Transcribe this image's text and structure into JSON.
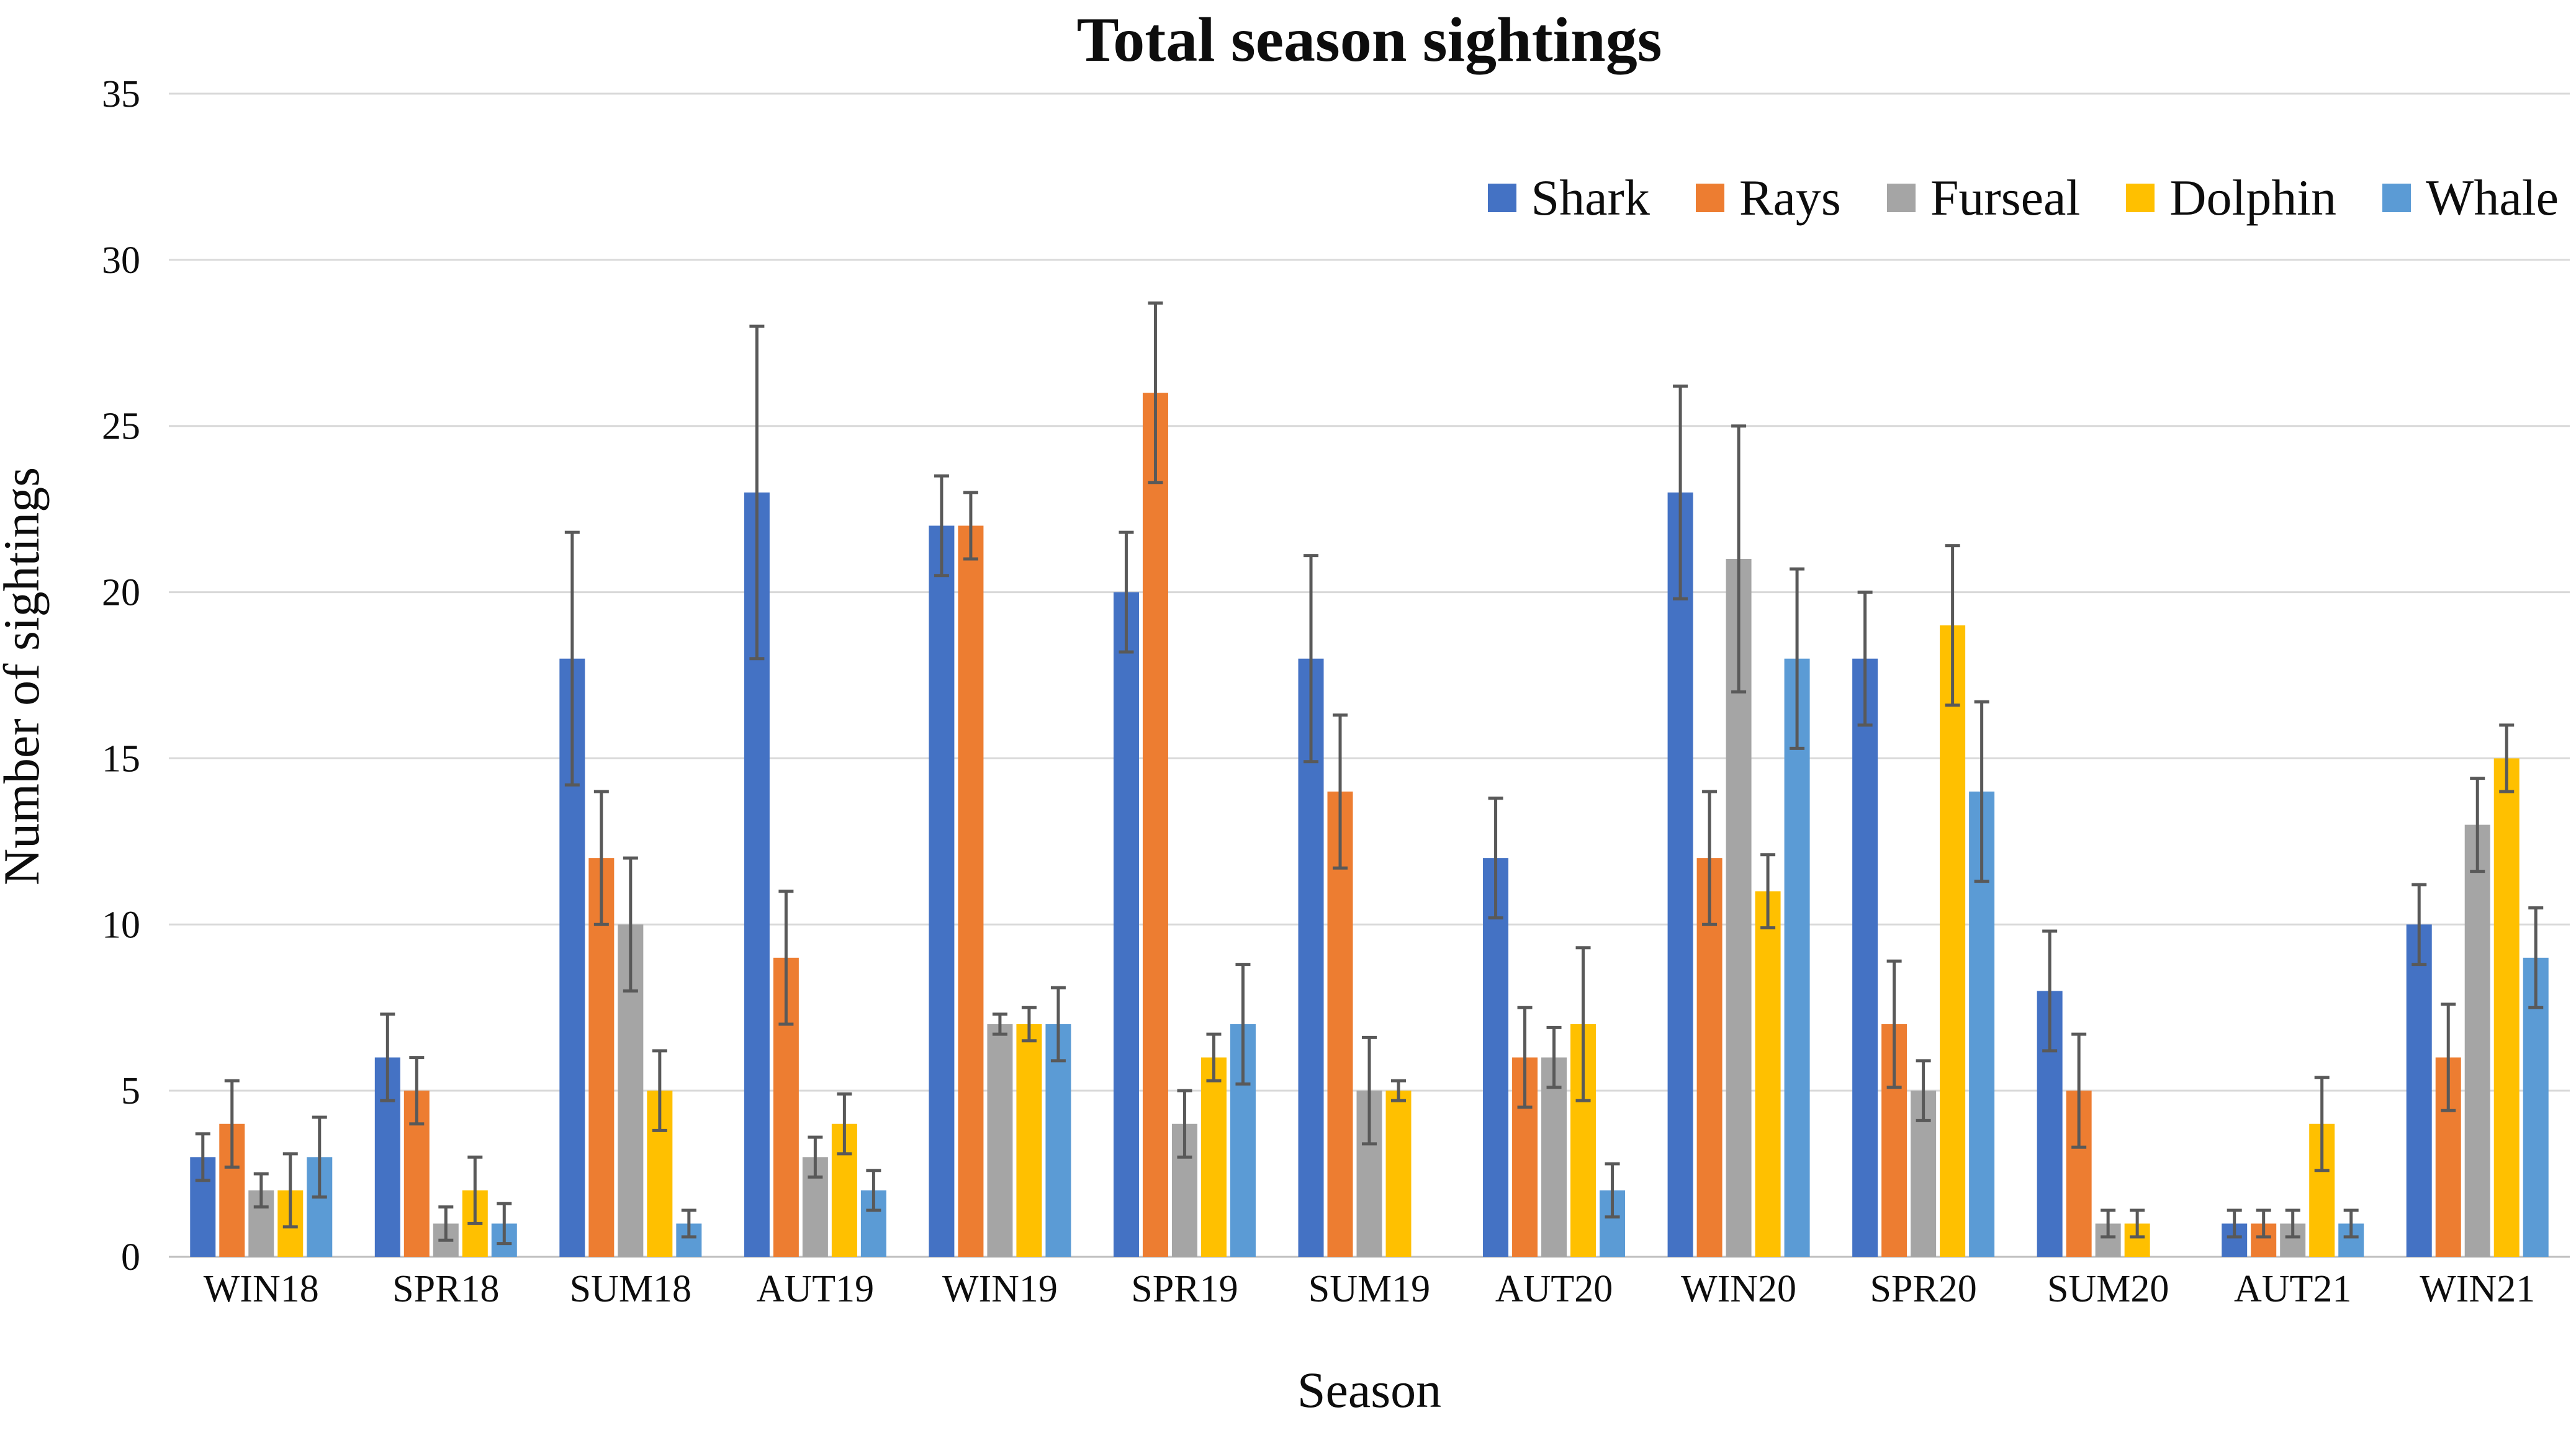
{
  "chart_data": {
    "type": "bar",
    "title": "Total season sightings",
    "xlabel": "Season",
    "ylabel": "Number of sightings",
    "ylim": [
      0,
      35
    ],
    "y_ticks": [
      0,
      5,
      10,
      15,
      20,
      25,
      30,
      35
    ],
    "grid": true,
    "legend_position": "top-right",
    "error_bars": true,
    "background_color": "#ffffff",
    "gridline_color": "#d9d9d9",
    "baseline_color": "#bfbfbf",
    "error_bar_color": "#595959",
    "categories": [
      "WIN18",
      "SPR18",
      "SUM18",
      "AUT19",
      "WIN19",
      "SPR19",
      "SUM19",
      "AUT20",
      "WIN20",
      "SPR20",
      "SUM20",
      "AUT21",
      "WIN21"
    ],
    "series": [
      {
        "name": "Shark",
        "color": "#4472C4",
        "values": [
          3,
          6,
          18,
          23,
          22,
          20,
          18,
          12,
          23,
          18,
          8,
          1,
          10
        ],
        "errors": [
          0.7,
          1.3,
          3.8,
          5.0,
          1.5,
          1.8,
          3.1,
          1.8,
          3.2,
          2.0,
          1.8,
          0.4,
          1.2
        ]
      },
      {
        "name": "Rays",
        "color": "#ED7D31",
        "values": [
          4,
          5,
          12,
          9,
          22,
          26,
          14,
          6,
          12,
          7,
          5,
          1,
          6
        ],
        "errors": [
          1.3,
          1.0,
          2.0,
          2.0,
          1.0,
          2.7,
          2.3,
          1.5,
          2.0,
          1.9,
          1.7,
          0.4,
          1.6
        ]
      },
      {
        "name": "Furseal",
        "color": "#A5A5A5",
        "values": [
          2,
          1,
          10,
          3,
          7,
          4,
          5,
          6,
          21,
          5,
          1,
          1,
          13
        ],
        "errors": [
          0.5,
          0.5,
          2.0,
          0.6,
          0.3,
          1.0,
          1.6,
          0.9,
          4.0,
          0.9,
          0.4,
          0.4,
          1.4
        ]
      },
      {
        "name": "Dolphin",
        "color": "#FFC000",
        "values": [
          2,
          2,
          5,
          4,
          7,
          6,
          5,
          7,
          11,
          19,
          1,
          4,
          15
        ],
        "errors": [
          1.1,
          1.0,
          1.2,
          0.9,
          0.5,
          0.7,
          0.3,
          2.3,
          1.1,
          2.4,
          0.4,
          1.4,
          1.0
        ]
      },
      {
        "name": "Whale",
        "color": "#5B9BD5",
        "values": [
          3,
          1,
          1,
          2,
          7,
          7,
          0,
          2,
          18,
          14,
          0,
          1,
          9
        ],
        "errors": [
          1.2,
          0.6,
          0.4,
          0.6,
          1.1,
          1.8,
          0,
          0.8,
          2.7,
          2.7,
          0,
          0.4,
          1.5
        ]
      }
    ]
  }
}
